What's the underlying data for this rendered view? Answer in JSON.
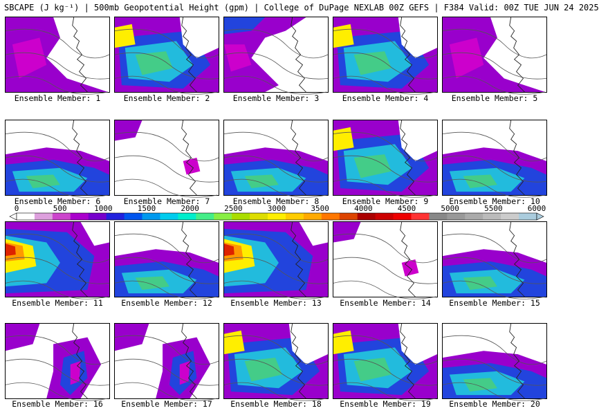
{
  "header": {
    "title": "SBCAPE (J kg⁻¹) | 500mb Geopotential Height (gpm) | College of DuPage NEXLAB 00Z GEFS | F384 Valid: 00Z TUE JUN 24 2025"
  },
  "colorbar": {
    "min": 0,
    "max": 6000,
    "tick_labels": [
      "0",
      "500",
      "1000",
      "1500",
      "2000",
      "2500",
      "3000",
      "3500",
      "4000",
      "4500",
      "5000",
      "5500",
      "6000"
    ],
    "colors": [
      "#ffffff",
      "#dda0dd",
      "#cc44cc",
      "#aa00cc",
      "#7700cc",
      "#2222dd",
      "#0055ee",
      "#0099ee",
      "#00ccee",
      "#00eecc",
      "#44ee88",
      "#88ee44",
      "#aadd00",
      "#dddd00",
      "#ffee00",
      "#ffcc00",
      "#ffaa00",
      "#ff7700",
      "#dd4400",
      "#aa0000",
      "#cc0000",
      "#ee0000",
      "#ff3333",
      "#888888",
      "#999999",
      "#aaaaaa",
      "#bbbbbb",
      "#cccccc",
      "#aaccdd"
    ]
  },
  "members": [
    {
      "label": "Ensemble Member: 1",
      "pattern": "west-purple"
    },
    {
      "label": "Ensemble Member: 2",
      "pattern": "broad-mixed"
    },
    {
      "label": "Ensemble Member: 3",
      "pattern": "north-west"
    },
    {
      "label": "Ensemble Member: 4",
      "pattern": "broad-mixed"
    },
    {
      "label": "Ensemble Member: 5",
      "pattern": "west-purple"
    },
    {
      "label": "Ensemble Member: 6",
      "pattern": "south-band"
    },
    {
      "label": "Ensemble Member: 7",
      "pattern": "sparse"
    },
    {
      "label": "Ensemble Member: 8",
      "pattern": "south-band"
    },
    {
      "label": "Ensemble Member: 9",
      "pattern": "broad-mixed"
    },
    {
      "label": "Ensemble Member: 10",
      "pattern": "south-band"
    },
    {
      "label": "Ensemble Member: 11",
      "pattern": "hot-west"
    },
    {
      "label": "Ensemble Member: 12",
      "pattern": "south-band"
    },
    {
      "label": "Ensemble Member: 13",
      "pattern": "hot-west"
    },
    {
      "label": "Ensemble Member: 14",
      "pattern": "sparse"
    },
    {
      "label": "Ensemble Member: 15",
      "pattern": "south-band"
    },
    {
      "label": "Ensemble Member: 16",
      "pattern": "east-streak"
    },
    {
      "label": "Ensemble Member: 17",
      "pattern": "east-streak"
    },
    {
      "label": "Ensemble Member: 18",
      "pattern": "broad-mixed"
    },
    {
      "label": "Ensemble Member: 19",
      "pattern": "broad-mixed"
    },
    {
      "label": "Ensemble Member: 20",
      "pattern": "south-band"
    }
  ],
  "palette": {
    "light_purple": "#dd66ee",
    "purple": "#9900cc",
    "magenta": "#cc00cc",
    "blue": "#2244dd",
    "cyan": "#22bbdd",
    "green": "#44cc88",
    "yellow": "#ffee00",
    "orange": "#ff9900",
    "red": "#dd2200",
    "coast": "#222222",
    "contour": "#555555"
  }
}
